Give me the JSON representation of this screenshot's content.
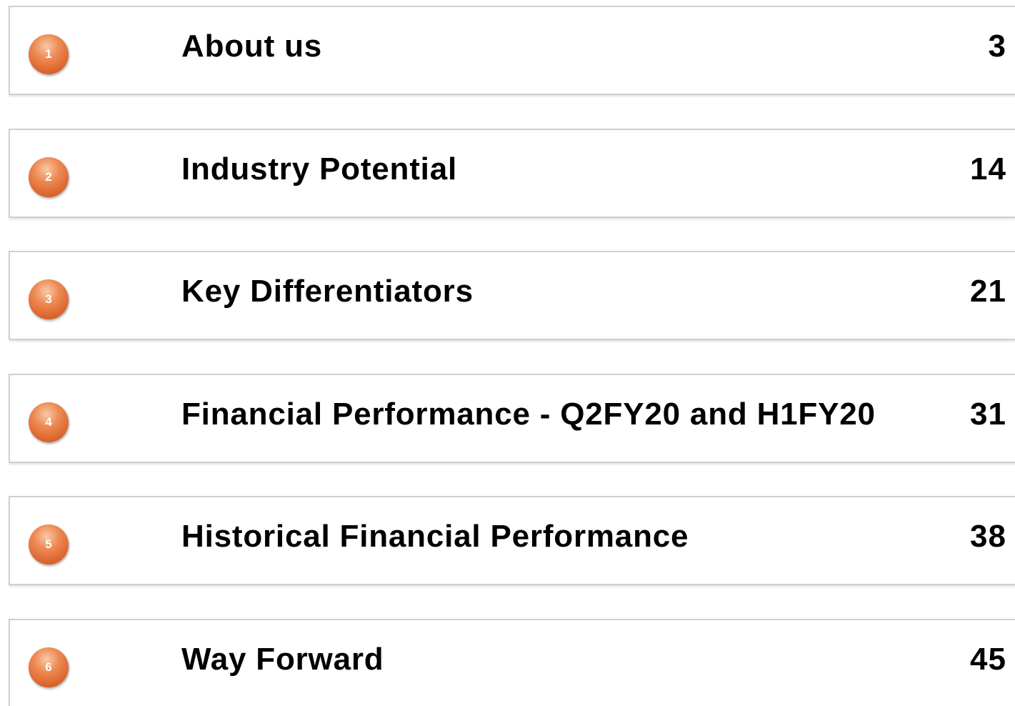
{
  "contents": {
    "items": [
      {
        "number": "1",
        "title": "About us",
        "page": "3"
      },
      {
        "number": "2",
        "title": "Industry Potential",
        "page": "14"
      },
      {
        "number": "3",
        "title": "Key Differentiators",
        "page": "21"
      },
      {
        "number": "4",
        "title": "Financial Performance - Q2FY20 and H1FY20",
        "page": "31"
      },
      {
        "number": "5",
        "title": "Historical Financial Performance",
        "page": "38"
      },
      {
        "number": "6",
        "title": "Way Forward",
        "page": "45"
      }
    ]
  }
}
